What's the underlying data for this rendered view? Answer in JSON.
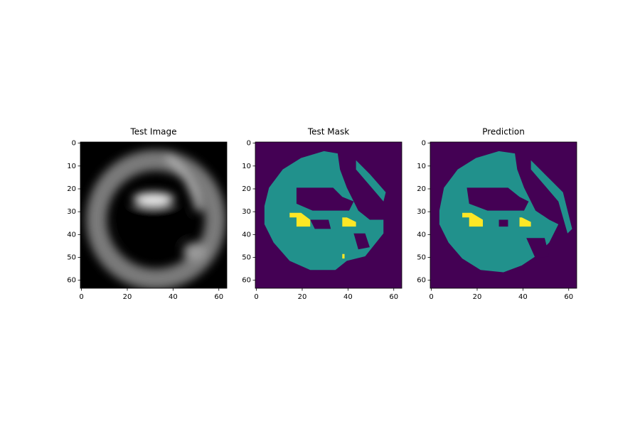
{
  "chart_data": [
    {
      "type": "image",
      "title": "Test Image",
      "xlim": [
        -0.5,
        63.5
      ],
      "ylim": [
        63.5,
        -0.5
      ],
      "xticks": [
        0,
        20,
        40,
        60
      ],
      "yticks": [
        0,
        10,
        20,
        30,
        40,
        50,
        60
      ]
    },
    {
      "type": "image",
      "title": "Test Mask",
      "xlim": [
        -0.5,
        63.5
      ],
      "ylim": [
        63.5,
        -0.5
      ],
      "xticks": [
        0,
        20,
        40,
        60
      ],
      "yticks": [
        0,
        10,
        20,
        30,
        40,
        50,
        60
      ]
    },
    {
      "type": "image",
      "title": "Prediction",
      "xlim": [
        -0.5,
        63.5
      ],
      "ylim": [
        63.5,
        -0.5
      ],
      "xticks": [
        0,
        20,
        40,
        60
      ],
      "yticks": [
        0,
        10,
        20,
        30,
        40,
        50,
        60
      ]
    }
  ]
}
